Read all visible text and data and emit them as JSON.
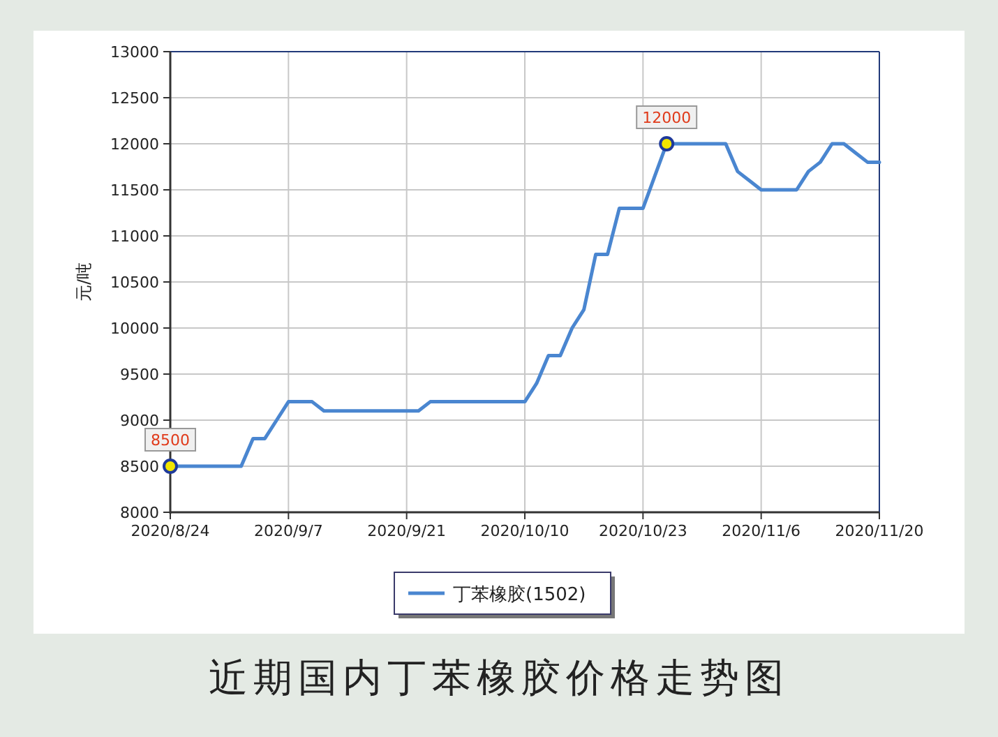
{
  "chart_data": {
    "type": "line",
    "title": "近期国内丁苯橡胶价格走势图",
    "ylabel": "元/吨",
    "categories": [
      "2020/8/24",
      null,
      null,
      null,
      null,
      null,
      null,
      null,
      null,
      null,
      "2020/9/7",
      null,
      null,
      null,
      null,
      null,
      null,
      null,
      null,
      null,
      "2020/9/21",
      null,
      null,
      null,
      null,
      null,
      null,
      null,
      null,
      null,
      "2020/10/10",
      null,
      null,
      null,
      null,
      null,
      null,
      null,
      null,
      null,
      "2020/10/23",
      null,
      null,
      null,
      null,
      null,
      null,
      null,
      null,
      null,
      "2020/11/6",
      null,
      null,
      null,
      null,
      null,
      null,
      null,
      null,
      null,
      "2020/11/20"
    ],
    "series": [
      {
        "name": "丁苯橡胶(1502)",
        "color": "#4a86d0",
        "values": [
          8500,
          8500,
          8500,
          8500,
          8500,
          8500,
          8500,
          8800,
          8800,
          9000,
          9200,
          9200,
          9200,
          9100,
          9100,
          9100,
          9100,
          9100,
          9100,
          9100,
          9100,
          9100,
          9200,
          9200,
          9200,
          9200,
          9200,
          9200,
          9200,
          9200,
          9200,
          9400,
          9700,
          9700,
          10000,
          10200,
          10800,
          10800,
          11300,
          11300,
          11300,
          11650,
          12000,
          12000,
          12000,
          12000,
          12000,
          12000,
          11700,
          11600,
          11500,
          11500,
          11500,
          11500,
          11700,
          11800,
          12000,
          12000,
          11900,
          11800,
          11800
        ],
        "value_labels": [
          "8500",
          null,
          null,
          null,
          null,
          null,
          null,
          null,
          null,
          null,
          null,
          null,
          null,
          null,
          null,
          null,
          null,
          null,
          null,
          null,
          null,
          null,
          null,
          null,
          null,
          null,
          null,
          null,
          null,
          null,
          null,
          null,
          null,
          null,
          null,
          null,
          null,
          null,
          null,
          null,
          null,
          null,
          "12000",
          null,
          null,
          null,
          null,
          null,
          null,
          null,
          null,
          null,
          null,
          null,
          null,
          null,
          null,
          null,
          null,
          null,
          null
        ]
      }
    ],
    "ylim": [
      8000,
      13000
    ],
    "yticks": [
      8000,
      8500,
      9000,
      9500,
      10000,
      10500,
      11000,
      11500,
      12000,
      12500,
      13000
    ],
    "grid": true,
    "legend": "bottom",
    "line_style": "solid"
  }
}
